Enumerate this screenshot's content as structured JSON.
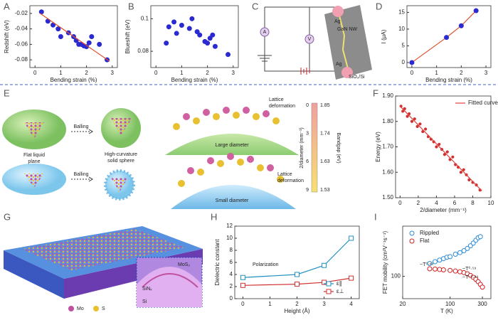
{
  "chart_data": [
    {
      "type": "scatter",
      "panel": "A",
      "xlabel": "Bending strain (%)",
      "ylabel": "Redshift (eV)",
      "xlim": [
        -0.2,
        3.2
      ],
      "xticks": [
        0,
        1,
        2,
        3
      ],
      "ylim": [
        -0.09,
        -0.01
      ],
      "yticks": [
        -0.02,
        -0.04,
        -0.06,
        -0.08
      ],
      "series": [
        {
          "color": "#2a2ad0",
          "marker": "circle",
          "x": [
            0.25,
            0.5,
            0.7,
            0.9,
            1.0,
            1.3,
            1.5,
            1.6,
            1.7,
            1.8,
            1.9,
            2.0,
            2.1,
            2.2,
            2.5,
            2.8
          ],
          "values": [
            -0.018,
            -0.03,
            -0.035,
            -0.04,
            -0.05,
            -0.045,
            -0.05,
            -0.055,
            -0.06,
            -0.06,
            -0.062,
            -0.063,
            -0.058,
            -0.05,
            -0.06,
            -0.08
          ]
        },
        {
          "color": "#e05030",
          "line": true,
          "x": [
            0.2,
            2.9
          ],
          "values": [
            -0.02,
            -0.082
          ]
        }
      ]
    },
    {
      "type": "scatter",
      "panel": "B",
      "xlabel": "Bending strain (%)",
      "ylabel": "Blueshift (eV)",
      "xlim": [
        -0.2,
        3.2
      ],
      "xticks": [
        0,
        1,
        2,
        3
      ],
      "ylim": [
        0.07,
        0.108
      ],
      "yticks": [
        0.08,
        0.1
      ],
      "series": [
        {
          "color": "#2a2ad0",
          "marker": "circle",
          "x": [
            0.4,
            0.5,
            0.7,
            0.8,
            1.0,
            1.3,
            1.4,
            1.6,
            1.7,
            1.9,
            2.0,
            2.1,
            2.2,
            2.3,
            2.8
          ],
          "values": [
            0.085,
            0.095,
            0.098,
            0.091,
            0.096,
            0.094,
            0.1,
            0.092,
            0.09,
            0.086,
            0.085,
            0.088,
            0.09,
            0.083,
            0.078
          ]
        }
      ]
    },
    {
      "type": "scatter",
      "panel": "D",
      "xlabel": "Bending strain (%)",
      "ylabel": "I (μA)",
      "xlim": [
        -0.2,
        3.2
      ],
      "xticks": [
        0,
        1,
        2,
        3
      ],
      "ylim": [
        -1.5,
        17
      ],
      "yticks": [
        0,
        5,
        10,
        15
      ],
      "series": [
        {
          "color": "#e05030",
          "line": true,
          "x": [
            0,
            1.4,
            2,
            2.6
          ],
          "values": [
            0,
            7.5,
            11,
            15.5
          ]
        },
        {
          "color": "#2a2ad0",
          "marker": "circle",
          "x": [
            0,
            1.4,
            2,
            2.6
          ],
          "values": [
            0,
            7.5,
            11,
            15.5
          ]
        }
      ]
    },
    {
      "type": "scatter",
      "panel": "F",
      "xlabel": "2/diameter (mm⁻¹)",
      "ylabel": "Energy (eV)",
      "legend": "upper right",
      "xlim": [
        -0.5,
        10
      ],
      "xticks": [
        0,
        2,
        4,
        6,
        8,
        10
      ],
      "ylim": [
        1.5,
        1.9
      ],
      "yticks": [
        {
          "value": 1.5,
          "label": "1.50"
        },
        {
          "value": 1.6,
          "label": "1.60"
        },
        {
          "value": 1.7,
          "label": "1.70"
        },
        {
          "value": 1.8,
          "label": "1.80"
        },
        {
          "value": 1.9,
          "label": "1.90"
        }
      ],
      "series": [
        {
          "color": "#d03030",
          "marker": "circle",
          "small": true,
          "x": [
            0.1,
            0.3,
            0.5,
            0.8,
            1.0,
            1.3,
            1.6,
            1.9,
            2.2,
            2.5,
            2.8,
            3.1,
            3.4,
            3.7,
            4.0,
            4.3,
            4.6,
            4.9,
            5.2,
            5.5,
            5.8,
            6.1,
            6.4,
            6.7,
            7.0,
            7.3,
            7.6,
            8.0,
            8.4,
            8.8
          ],
          "values": [
            1.86,
            1.84,
            1.85,
            1.82,
            1.83,
            1.8,
            1.81,
            1.78,
            1.79,
            1.76,
            1.77,
            1.74,
            1.73,
            1.72,
            1.7,
            1.71,
            1.69,
            1.67,
            1.68,
            1.65,
            1.66,
            1.63,
            1.62,
            1.6,
            1.61,
            1.59,
            1.57,
            1.56,
            1.55,
            1.53
          ]
        },
        {
          "name": "Fitted curve",
          "color": "#e04040",
          "line": true,
          "x": [
            0,
            9
          ],
          "values": [
            1.86,
            1.527
          ]
        }
      ]
    },
    {
      "type": "line",
      "panel": "H",
      "xlabel": "Height (Å)",
      "ylabel": "Dielectric constant",
      "legend": "lower right",
      "annotations": [
        "Polarization"
      ],
      "xlim": [
        -0.3,
        4.3
      ],
      "xticks": [
        0,
        1,
        2,
        3,
        4
      ],
      "ylim": [
        0,
        12
      ],
      "yticks": [
        0,
        2,
        4,
        6,
        8,
        10,
        12
      ],
      "series": [
        {
          "name": "ε∥",
          "color": "#2090c0",
          "line": true,
          "marker": "square",
          "open": true,
          "x": [
            0,
            2,
            3,
            4
          ],
          "values": [
            3.5,
            4.0,
            5.5,
            10
          ]
        },
        {
          "name": "ε⊥",
          "color": "#d03030",
          "line": true,
          "marker": "square",
          "open": true,
          "x": [
            0,
            2,
            3,
            4
          ],
          "values": [
            2.2,
            2.4,
            2.7,
            3.4
          ]
        }
      ]
    },
    {
      "type": "scatter",
      "panel": "I",
      "xlabel": "T (K)",
      "ylabel": "FET mobility (cm²V⁻¹s⁻¹)",
      "legend": "upper left",
      "xscale": "log",
      "yscale": "log",
      "annotations": [
        "~T⁰·⁴⁹",
        "~T⁰·⁵⁹",
        "~T⁻¹·⁴⁶"
      ],
      "xlim": [
        20,
        400
      ],
      "xticks": [
        20,
        100,
        300
      ],
      "ylim": [
        30,
        1500
      ],
      "yticks": [
        100
      ],
      "series": [
        {
          "name": "Rippled",
          "color": "#2a8ad8",
          "marker": "circle",
          "open": true,
          "x": [
            50,
            60,
            70,
            80,
            90,
            100,
            120,
            140,
            160,
            180,
            200,
            220,
            240,
            260,
            280
          ],
          "values": [
            200,
            220,
            240,
            260,
            280,
            290,
            330,
            360,
            400,
            450,
            520,
            600,
            700,
            800,
            850
          ]
        },
        {
          "name": "Flat",
          "color": "#d02020",
          "marker": "circle",
          "open": true,
          "x": [
            50,
            60,
            70,
            80,
            100,
            120,
            140,
            160,
            180,
            200,
            220,
            240,
            260,
            280,
            300
          ],
          "values": [
            150,
            148,
            145,
            142,
            138,
            133,
            128,
            122,
            115,
            105,
            95,
            85,
            75,
            65,
            56
          ]
        }
      ]
    }
  ],
  "panels": {
    "C": {
      "label": "C",
      "texts": [
        "Ag",
        "GaN  NW",
        "Ag",
        "SiO₂/Si",
        "A",
        "V"
      ]
    },
    "E": {
      "label": "E",
      "texts": [
        "Flat liquid",
        "plane",
        "Balling",
        "High-curvature",
        "solid sphere",
        "Balling",
        "Lattice",
        "deformation",
        "Large diameter",
        "Lattice",
        "deformation",
        "Small diameter"
      ],
      "colorbar": {
        "left_label": "2/diameter (mm⁻¹)",
        "right_label": "Bandgap (eV)",
        "left_ticks": [
          0,
          3,
          6,
          9
        ],
        "right_ticks": [
          1.85,
          1.74,
          1.63,
          1.53
        ]
      }
    },
    "G": {
      "label": "G",
      "texts": [
        "MoS₂",
        "SiNₓ",
        "Si",
        "Mo",
        "S"
      ]
    }
  }
}
